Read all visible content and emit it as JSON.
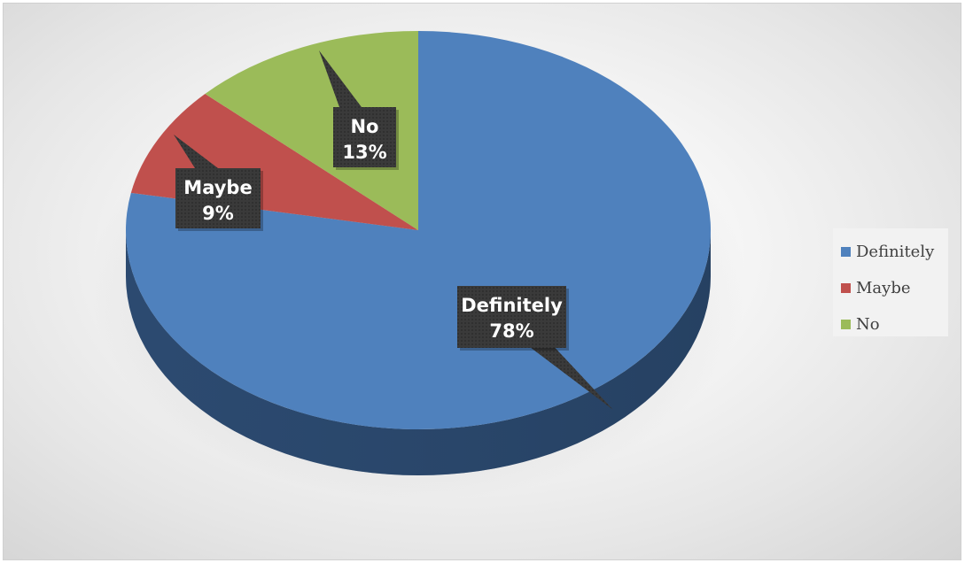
{
  "chart_data": {
    "type": "pie",
    "title": "",
    "categories": [
      "Definitely",
      "Maybe",
      "No"
    ],
    "values": [
      78,
      9,
      13
    ],
    "value_labels": [
      "78%",
      "9%",
      "13%"
    ],
    "colors": [
      "#4f81bd",
      "#c0504d",
      "#9bbb59"
    ],
    "legend_position": "right",
    "three_d": true
  },
  "legend": {
    "items": [
      {
        "label": "Definitely",
        "color": "#4f81bd"
      },
      {
        "label": "Maybe",
        "color": "#c0504d"
      },
      {
        "label": "No",
        "color": "#9bbb59"
      }
    ]
  }
}
